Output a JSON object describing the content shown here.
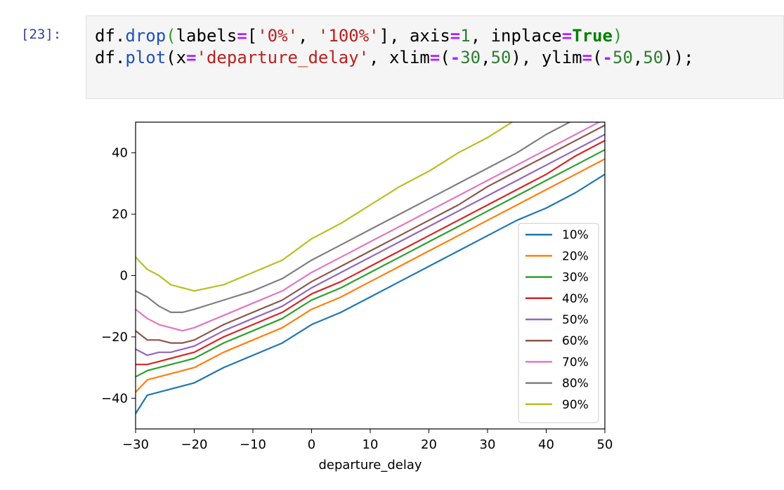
{
  "cell": {
    "prompt": "[23]:",
    "code_lines": [
      [
        {
          "t": "df",
          "c": "#000000"
        },
        {
          "t": ".",
          "c": "#000000"
        },
        {
          "t": "drop",
          "c": "#1f4fbf"
        },
        {
          "t": "(",
          "c": "#2ca02c"
        },
        {
          "t": "labels",
          "c": "#000000"
        },
        {
          "t": "=",
          "c": "#aa22ff",
          "b": true
        },
        {
          "t": "[",
          "c": "#000000"
        },
        {
          "t": "'0%'",
          "c": "#ba2121"
        },
        {
          "t": ", ",
          "c": "#000000"
        },
        {
          "t": "'100%'",
          "c": "#ba2121"
        },
        {
          "t": "], axis",
          "c": "#000000"
        },
        {
          "t": "=",
          "c": "#aa22ff",
          "b": true
        },
        {
          "t": "1",
          "c": "#2e7d32"
        },
        {
          "t": ", inplace",
          "c": "#000000"
        },
        {
          "t": "=",
          "c": "#aa22ff",
          "b": true
        },
        {
          "t": "True",
          "c": "#008000",
          "b": true
        },
        {
          "t": ")",
          "c": "#2ca02c"
        }
      ],
      [
        {
          "t": "df",
          "c": "#000000"
        },
        {
          "t": ".",
          "c": "#000000"
        },
        {
          "t": "plot",
          "c": "#1f4fbf"
        },
        {
          "t": "(x",
          "c": "#000000"
        },
        {
          "t": "=",
          "c": "#aa22ff",
          "b": true
        },
        {
          "t": "'departure_delay'",
          "c": "#ba2121"
        },
        {
          "t": ", xlim",
          "c": "#000000"
        },
        {
          "t": "=",
          "c": "#aa22ff",
          "b": true
        },
        {
          "t": "(",
          "c": "#000000"
        },
        {
          "t": "-",
          "c": "#aa22ff",
          "b": true
        },
        {
          "t": "30",
          "c": "#2e7d32"
        },
        {
          "t": ",",
          "c": "#000000"
        },
        {
          "t": "50",
          "c": "#2e7d32"
        },
        {
          "t": "), ylim",
          "c": "#000000"
        },
        {
          "t": "=",
          "c": "#aa22ff",
          "b": true
        },
        {
          "t": "(",
          "c": "#000000"
        },
        {
          "t": "-",
          "c": "#aa22ff",
          "b": true
        },
        {
          "t": "50",
          "c": "#2e7d32"
        },
        {
          "t": ",",
          "c": "#000000"
        },
        {
          "t": "50",
          "c": "#2e7d32"
        },
        {
          "t": "));",
          "c": "#000000"
        }
      ]
    ]
  },
  "chart_data": {
    "type": "line",
    "title": "",
    "xlabel": "departure_delay",
    "ylabel": "",
    "xlim": [
      -30,
      50
    ],
    "ylim": [
      -50,
      50
    ],
    "xticks": [
      -30,
      -20,
      -10,
      0,
      10,
      20,
      30,
      40,
      50
    ],
    "yticks": [
      -40,
      -20,
      0,
      20,
      40
    ],
    "grid": false,
    "legend": "lower-right",
    "x": [
      -30,
      -28,
      -26,
      -24,
      -22,
      -20,
      -15,
      -10,
      -5,
      0,
      5,
      10,
      15,
      20,
      25,
      30,
      35,
      40,
      45,
      50
    ],
    "series": [
      {
        "name": "10%",
        "color": "#1f77b4",
        "values": [
          -45,
          -39,
          -38,
          -37,
          -36,
          -35,
          -30,
          -26,
          -22,
          -16,
          -12,
          -7,
          -2,
          3,
          8,
          13,
          18,
          22,
          27,
          33
        ]
      },
      {
        "name": "20%",
        "color": "#ff7f0e",
        "values": [
          -38,
          -34,
          -33,
          -32,
          -31,
          -30,
          -25,
          -21,
          -17,
          -11,
          -7,
          -2,
          3,
          8,
          13,
          18,
          23,
          28,
          33,
          38
        ]
      },
      {
        "name": "30%",
        "color": "#2ca02c",
        "values": [
          -33,
          -31,
          -30,
          -29,
          -28,
          -27,
          -22,
          -18,
          -14,
          -8,
          -4,
          1,
          6,
          11,
          16,
          21,
          26,
          31,
          36,
          41
        ]
      },
      {
        "name": "40%",
        "color": "#d62728",
        "values": [
          -29,
          -29,
          -28,
          -27,
          -26,
          -25,
          -20,
          -16,
          -12,
          -6,
          -2,
          3,
          8,
          13,
          18,
          23,
          28,
          33,
          39,
          44
        ]
      },
      {
        "name": "50%",
        "color": "#9467bd",
        "values": [
          -24,
          -26,
          -25,
          -25,
          -24,
          -23,
          -18,
          -14,
          -10,
          -4,
          1,
          6,
          11,
          16,
          21,
          26,
          31,
          36,
          41,
          46
        ]
      },
      {
        "name": "60%",
        "color": "#8c564b",
        "values": [
          -18,
          -21,
          -21,
          -22,
          -22,
          -21,
          -16,
          -12,
          -8,
          -2,
          3,
          8,
          13,
          18,
          23,
          29,
          34,
          39,
          44,
          49
        ]
      },
      {
        "name": "70%",
        "color": "#e377c2",
        "values": [
          -11,
          -14,
          -16,
          -17,
          -18,
          -17,
          -13,
          -9,
          -5,
          1,
          6,
          11,
          16,
          21,
          26,
          31,
          36,
          41,
          46,
          51
        ]
      },
      {
        "name": "80%",
        "color": "#7f7f7f",
        "values": [
          -5,
          -7,
          -10,
          -12,
          -12,
          -11,
          -8,
          -5,
          -1,
          5,
          10,
          15,
          20,
          25,
          30,
          35,
          40,
          46,
          51,
          55
        ]
      },
      {
        "name": "90%",
        "color": "#bcbd22",
        "values": [
          6,
          2,
          0,
          -3,
          -4,
          -5,
          -3,
          1,
          5,
          12,
          17,
          23,
          29,
          34,
          40,
          45,
          51,
          56,
          60,
          64
        ]
      }
    ]
  }
}
